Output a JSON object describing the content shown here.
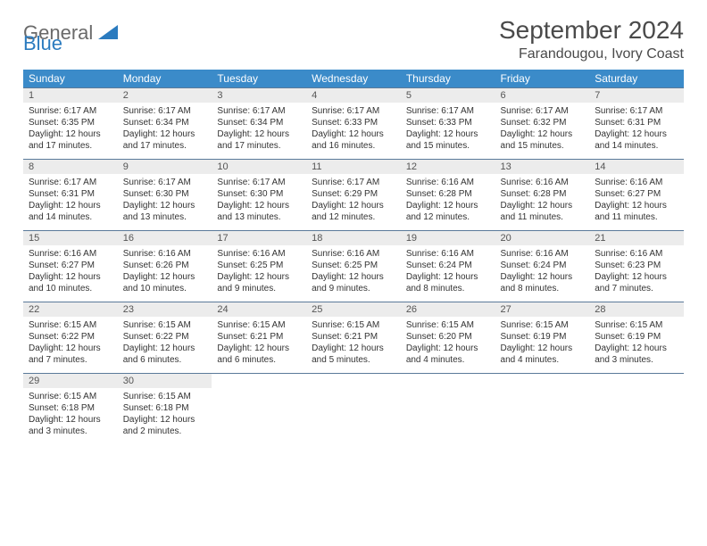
{
  "logo": {
    "text_gray": "General",
    "text_blue": "Blue"
  },
  "title": "September 2024",
  "location": "Farandougou, Ivory Coast",
  "colors": {
    "header_bg": "#3b8bc9",
    "header_text": "#ffffff",
    "daynum_bg": "#ececec",
    "border": "#5a7a9a",
    "logo_gray": "#6a6a6a",
    "logo_blue": "#2b7bbf"
  },
  "weekdays": [
    "Sunday",
    "Monday",
    "Tuesday",
    "Wednesday",
    "Thursday",
    "Friday",
    "Saturday"
  ],
  "weeks": [
    [
      {
        "n": "1",
        "sr": "6:17 AM",
        "ss": "6:35 PM",
        "dl": "12 hours and 17 minutes."
      },
      {
        "n": "2",
        "sr": "6:17 AM",
        "ss": "6:34 PM",
        "dl": "12 hours and 17 minutes."
      },
      {
        "n": "3",
        "sr": "6:17 AM",
        "ss": "6:34 PM",
        "dl": "12 hours and 17 minutes."
      },
      {
        "n": "4",
        "sr": "6:17 AM",
        "ss": "6:33 PM",
        "dl": "12 hours and 16 minutes."
      },
      {
        "n": "5",
        "sr": "6:17 AM",
        "ss": "6:33 PM",
        "dl": "12 hours and 15 minutes."
      },
      {
        "n": "6",
        "sr": "6:17 AM",
        "ss": "6:32 PM",
        "dl": "12 hours and 15 minutes."
      },
      {
        "n": "7",
        "sr": "6:17 AM",
        "ss": "6:31 PM",
        "dl": "12 hours and 14 minutes."
      }
    ],
    [
      {
        "n": "8",
        "sr": "6:17 AM",
        "ss": "6:31 PM",
        "dl": "12 hours and 14 minutes."
      },
      {
        "n": "9",
        "sr": "6:17 AM",
        "ss": "6:30 PM",
        "dl": "12 hours and 13 minutes."
      },
      {
        "n": "10",
        "sr": "6:17 AM",
        "ss": "6:30 PM",
        "dl": "12 hours and 13 minutes."
      },
      {
        "n": "11",
        "sr": "6:17 AM",
        "ss": "6:29 PM",
        "dl": "12 hours and 12 minutes."
      },
      {
        "n": "12",
        "sr": "6:16 AM",
        "ss": "6:28 PM",
        "dl": "12 hours and 12 minutes."
      },
      {
        "n": "13",
        "sr": "6:16 AM",
        "ss": "6:28 PM",
        "dl": "12 hours and 11 minutes."
      },
      {
        "n": "14",
        "sr": "6:16 AM",
        "ss": "6:27 PM",
        "dl": "12 hours and 11 minutes."
      }
    ],
    [
      {
        "n": "15",
        "sr": "6:16 AM",
        "ss": "6:27 PM",
        "dl": "12 hours and 10 minutes."
      },
      {
        "n": "16",
        "sr": "6:16 AM",
        "ss": "6:26 PM",
        "dl": "12 hours and 10 minutes."
      },
      {
        "n": "17",
        "sr": "6:16 AM",
        "ss": "6:25 PM",
        "dl": "12 hours and 9 minutes."
      },
      {
        "n": "18",
        "sr": "6:16 AM",
        "ss": "6:25 PM",
        "dl": "12 hours and 9 minutes."
      },
      {
        "n": "19",
        "sr": "6:16 AM",
        "ss": "6:24 PM",
        "dl": "12 hours and 8 minutes."
      },
      {
        "n": "20",
        "sr": "6:16 AM",
        "ss": "6:24 PM",
        "dl": "12 hours and 8 minutes."
      },
      {
        "n": "21",
        "sr": "6:16 AM",
        "ss": "6:23 PM",
        "dl": "12 hours and 7 minutes."
      }
    ],
    [
      {
        "n": "22",
        "sr": "6:15 AM",
        "ss": "6:22 PM",
        "dl": "12 hours and 7 minutes."
      },
      {
        "n": "23",
        "sr": "6:15 AM",
        "ss": "6:22 PM",
        "dl": "12 hours and 6 minutes."
      },
      {
        "n": "24",
        "sr": "6:15 AM",
        "ss": "6:21 PM",
        "dl": "12 hours and 6 minutes."
      },
      {
        "n": "25",
        "sr": "6:15 AM",
        "ss": "6:21 PM",
        "dl": "12 hours and 5 minutes."
      },
      {
        "n": "26",
        "sr": "6:15 AM",
        "ss": "6:20 PM",
        "dl": "12 hours and 4 minutes."
      },
      {
        "n": "27",
        "sr": "6:15 AM",
        "ss": "6:19 PM",
        "dl": "12 hours and 4 minutes."
      },
      {
        "n": "28",
        "sr": "6:15 AM",
        "ss": "6:19 PM",
        "dl": "12 hours and 3 minutes."
      }
    ],
    [
      {
        "n": "29",
        "sr": "6:15 AM",
        "ss": "6:18 PM",
        "dl": "12 hours and 3 minutes."
      },
      {
        "n": "30",
        "sr": "6:15 AM",
        "ss": "6:18 PM",
        "dl": "12 hours and 2 minutes."
      },
      null,
      null,
      null,
      null,
      null
    ]
  ],
  "labels": {
    "sunrise": "Sunrise:",
    "sunset": "Sunset:",
    "daylight": "Daylight:"
  }
}
